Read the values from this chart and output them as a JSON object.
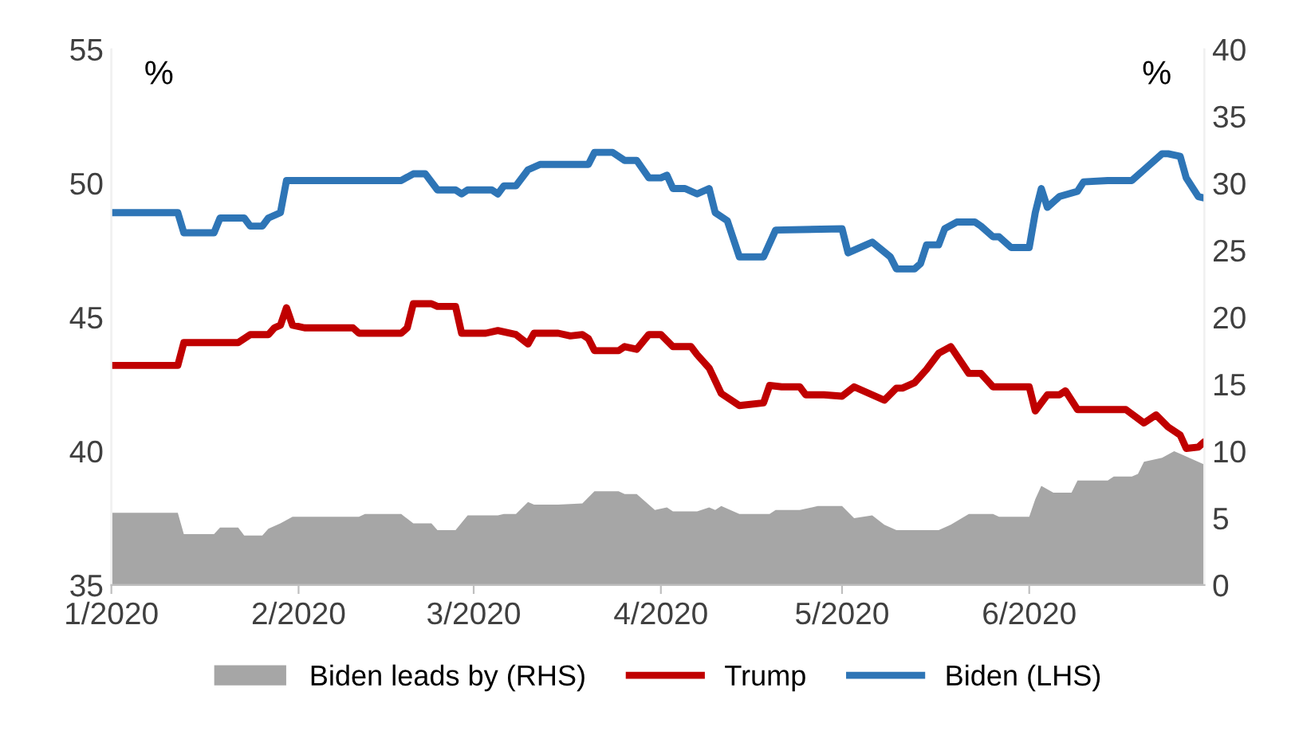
{
  "chart_data": {
    "type": "line",
    "ylabel": "%",
    "y2label": "%",
    "xlim": [
      "2020-01-01",
      "2020-06-30"
    ],
    "xticks": [
      {
        "value": "2020-01-01",
        "label": "1/2020"
      },
      {
        "value": "2020-02-01",
        "label": "2/2020"
      },
      {
        "value": "2020-03-01",
        "label": "3/2020"
      },
      {
        "value": "2020-04-01",
        "label": "4/2020"
      },
      {
        "value": "2020-05-01",
        "label": "5/2020"
      },
      {
        "value": "2020-06-01",
        "label": "6/2020"
      }
    ],
    "ylim": [
      35,
      55
    ],
    "yticks": [
      35,
      40,
      45,
      50,
      55
    ],
    "y2lim": [
      0,
      40
    ],
    "y2ticks": [
      0,
      5,
      10,
      15,
      20,
      25,
      30,
      35,
      40
    ],
    "grid": false,
    "legend": "bottom",
    "marker": "none",
    "line_style": "solid",
    "series": [
      {
        "name": "Biden leads by (RHS)",
        "type": "area",
        "axis": "y2",
        "color": "#a6a6a6",
        "x": [
          "2020-01-01",
          "2020-01-12",
          "2020-01-13",
          "2020-01-18",
          "2020-01-19",
          "2020-01-22",
          "2020-01-23",
          "2020-01-26",
          "2020-01-27",
          "2020-01-29",
          "2020-01-31",
          "2020-02-11",
          "2020-02-12",
          "2020-02-18",
          "2020-02-20",
          "2020-02-23",
          "2020-02-24",
          "2020-02-27",
          "2020-02-29",
          "2020-03-05",
          "2020-03-06",
          "2020-03-08",
          "2020-03-10",
          "2020-03-11",
          "2020-03-15",
          "2020-03-19",
          "2020-03-21",
          "2020-03-25",
          "2020-03-26",
          "2020-03-28",
          "2020-03-31",
          "2020-04-02",
          "2020-04-03",
          "2020-04-07",
          "2020-04-09",
          "2020-04-10",
          "2020-04-11",
          "2020-04-14",
          "2020-04-19",
          "2020-04-20",
          "2020-04-24",
          "2020-04-27",
          "2020-05-01",
          "2020-05-03",
          "2020-05-06",
          "2020-05-08",
          "2020-05-10",
          "2020-05-13",
          "2020-05-17",
          "2020-05-19",
          "2020-05-22",
          "2020-05-26",
          "2020-05-27",
          "2020-06-01",
          "2020-06-02",
          "2020-06-03",
          "2020-06-05",
          "2020-06-08",
          "2020-06-09",
          "2020-06-14",
          "2020-06-15",
          "2020-06-18",
          "2020-06-19",
          "2020-06-20",
          "2020-06-23",
          "2020-06-25",
          "2020-06-26",
          "2020-06-30"
        ],
        "values": [
          5.4,
          5.4,
          3.8,
          3.8,
          4.3,
          4.3,
          3.7,
          3.7,
          4.2,
          4.6,
          5.1,
          5.1,
          5.3,
          5.3,
          4.6,
          4.6,
          4.1,
          4.1,
          5.2,
          5.2,
          5.3,
          5.3,
          6.2,
          6.0,
          6.0,
          6.1,
          7.0,
          7.0,
          6.8,
          6.8,
          5.6,
          5.8,
          5.5,
          5.5,
          5.8,
          5.6,
          5.9,
          5.3,
          5.3,
          5.6,
          5.6,
          5.9,
          5.9,
          5.0,
          5.2,
          4.5,
          4.1,
          4.1,
          4.1,
          4.5,
          5.3,
          5.3,
          5.1,
          5.1,
          6.4,
          7.4,
          6.9,
          6.9,
          7.8,
          7.8,
          8.1,
          8.1,
          8.3,
          9.2,
          9.5,
          10.0,
          9.8,
          9.0
        ]
      },
      {
        "name": "Trump",
        "color": "#c00000",
        "x": [
          "2020-01-01",
          "2020-01-12",
          "2020-01-13",
          "2020-01-22",
          "2020-01-24",
          "2020-01-27",
          "2020-01-28",
          "2020-01-29",
          "2020-01-30",
          "2020-01-31",
          "2020-02-02",
          "2020-02-10",
          "2020-02-11",
          "2020-02-18",
          "2020-02-19",
          "2020-02-20",
          "2020-02-23",
          "2020-02-24",
          "2020-02-27",
          "2020-02-28",
          "2020-03-03",
          "2020-03-05",
          "2020-03-08",
          "2020-03-10",
          "2020-03-11",
          "2020-03-15",
          "2020-03-17",
          "2020-03-19",
          "2020-03-20",
          "2020-03-21",
          "2020-03-25",
          "2020-03-26",
          "2020-03-28",
          "2020-03-30",
          "2020-04-01",
          "2020-04-03",
          "2020-04-06",
          "2020-04-07",
          "2020-04-09",
          "2020-04-11",
          "2020-04-14",
          "2020-04-18",
          "2020-04-19",
          "2020-04-21",
          "2020-04-24",
          "2020-04-25",
          "2020-04-28",
          "2020-05-01",
          "2020-05-03",
          "2020-05-08",
          "2020-05-10",
          "2020-05-11",
          "2020-05-13",
          "2020-05-15",
          "2020-05-17",
          "2020-05-19",
          "2020-05-22",
          "2020-05-24",
          "2020-05-26",
          "2020-06-01",
          "2020-06-02",
          "2020-06-04",
          "2020-06-06",
          "2020-06-07",
          "2020-06-09",
          "2020-06-17",
          "2020-06-20",
          "2020-06-22",
          "2020-06-24",
          "2020-06-26",
          "2020-06-27",
          "2020-06-29",
          "2020-06-30"
        ],
        "values": [
          43.2,
          43.2,
          44.05,
          44.05,
          44.35,
          44.35,
          44.6,
          44.7,
          45.35,
          44.7,
          44.6,
          44.6,
          44.4,
          44.4,
          44.6,
          45.5,
          45.5,
          45.4,
          45.4,
          44.4,
          44.4,
          44.5,
          44.35,
          44.0,
          44.4,
          44.4,
          44.3,
          44.35,
          44.2,
          43.75,
          43.75,
          43.9,
          43.8,
          44.35,
          44.35,
          43.9,
          43.9,
          43.6,
          43.1,
          42.15,
          41.7,
          41.8,
          42.45,
          42.4,
          42.4,
          42.1,
          42.1,
          42.05,
          42.4,
          41.9,
          42.35,
          42.35,
          42.55,
          43.05,
          43.65,
          43.9,
          42.9,
          42.9,
          42.4,
          42.4,
          41.5,
          42.1,
          42.1,
          42.25,
          41.55,
          41.55,
          41.05,
          41.35,
          40.9,
          40.6,
          40.1,
          40.15,
          40.35
        ]
      },
      {
        "name": "Biden (LHS)",
        "color": "#2e75b6",
        "x": [
          "2020-01-01",
          "2020-01-12",
          "2020-01-13",
          "2020-01-18",
          "2020-01-19",
          "2020-01-23",
          "2020-01-24",
          "2020-01-26",
          "2020-01-27",
          "2020-01-29",
          "2020-01-30",
          "2020-02-18",
          "2020-02-20",
          "2020-02-22",
          "2020-02-24",
          "2020-02-27",
          "2020-02-28",
          "2020-02-29",
          "2020-03-04",
          "2020-03-05",
          "2020-03-06",
          "2020-03-08",
          "2020-03-10",
          "2020-03-12",
          "2020-03-20",
          "2020-03-21",
          "2020-03-24",
          "2020-03-26",
          "2020-03-28",
          "2020-03-30",
          "2020-04-01",
          "2020-04-02",
          "2020-04-03",
          "2020-04-05",
          "2020-04-07",
          "2020-04-09",
          "2020-04-10",
          "2020-04-12",
          "2020-04-14",
          "2020-04-18",
          "2020-04-20",
          "2020-05-01",
          "2020-05-02",
          "2020-05-05",
          "2020-05-06",
          "2020-05-09",
          "2020-05-10",
          "2020-05-13",
          "2020-05-14",
          "2020-05-15",
          "2020-05-17",
          "2020-05-18",
          "2020-05-20",
          "2020-05-23",
          "2020-05-24",
          "2020-05-26",
          "2020-05-27",
          "2020-05-29",
          "2020-06-01",
          "2020-06-02",
          "2020-06-03",
          "2020-06-04",
          "2020-06-06",
          "2020-06-09",
          "2020-06-10",
          "2020-06-14",
          "2020-06-18",
          "2020-06-20",
          "2020-06-23",
          "2020-06-24",
          "2020-06-26",
          "2020-06-27",
          "2020-06-29",
          "2020-06-30"
        ],
        "values": [
          48.9,
          48.9,
          48.15,
          48.15,
          48.7,
          48.7,
          48.4,
          48.4,
          48.7,
          48.9,
          50.1,
          50.1,
          50.35,
          50.35,
          49.75,
          49.75,
          49.6,
          49.75,
          49.75,
          49.6,
          49.9,
          49.9,
          50.5,
          50.7,
          50.7,
          51.15,
          51.15,
          50.85,
          50.85,
          50.2,
          50.2,
          50.3,
          49.8,
          49.8,
          49.6,
          49.8,
          48.9,
          48.6,
          47.25,
          47.25,
          48.25,
          48.3,
          47.4,
          47.7,
          47.8,
          47.25,
          46.8,
          46.8,
          47.0,
          47.7,
          47.7,
          48.3,
          48.55,
          48.55,
          48.4,
          48.0,
          48.0,
          47.6,
          47.6,
          48.9,
          49.8,
          49.1,
          49.5,
          49.7,
          50.05,
          50.1,
          50.1,
          50.5,
          51.1,
          51.1,
          51.0,
          50.2,
          49.5,
          49.45
        ]
      }
    ]
  }
}
